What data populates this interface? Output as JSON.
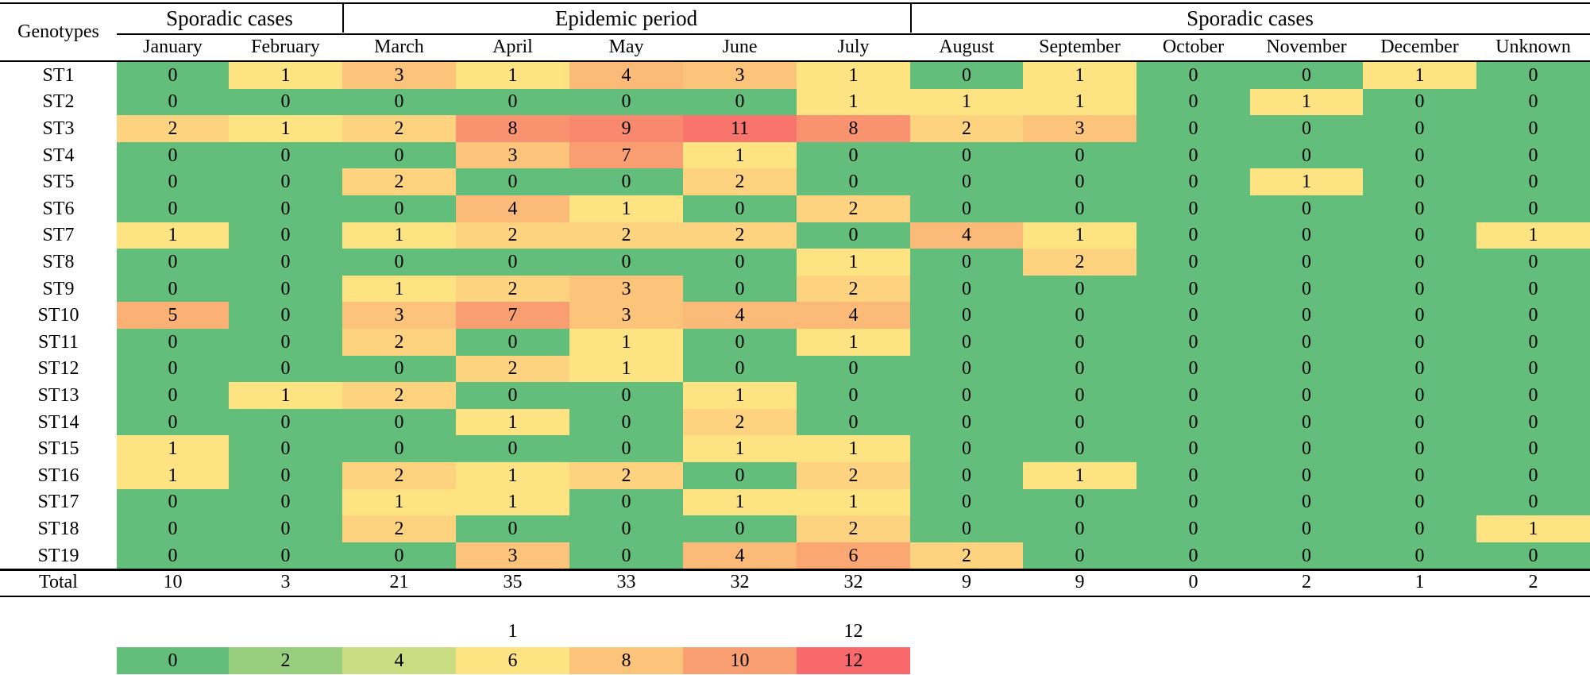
{
  "chart_data": {
    "type": "heatmap",
    "title": "",
    "row_header": "Genotypes",
    "groups": [
      {
        "label": "Sporadic cases",
        "months": [
          "January",
          "February"
        ]
      },
      {
        "label": "Epidemic period",
        "months": [
          "March",
          "April",
          "May",
          "June",
          "July"
        ]
      },
      {
        "label": "Sporadic cases",
        "months": [
          "August",
          "September",
          "October",
          "November",
          "December",
          "Unknown"
        ]
      }
    ],
    "columns": [
      "January",
      "February",
      "March",
      "April",
      "May",
      "June",
      "July",
      "August",
      "September",
      "October",
      "November",
      "December",
      "Unknown"
    ],
    "rows": [
      "ST1",
      "ST2",
      "ST3",
      "ST4",
      "ST5",
      "ST6",
      "ST7",
      "ST8",
      "ST9",
      "ST10",
      "ST11",
      "ST12",
      "ST13",
      "ST14",
      "ST15",
      "ST16",
      "ST17",
      "ST18",
      "ST19"
    ],
    "values": [
      [
        0,
        1,
        3,
        1,
        4,
        3,
        1,
        0,
        1,
        0,
        0,
        1,
        0
      ],
      [
        0,
        0,
        0,
        0,
        0,
        0,
        1,
        1,
        1,
        0,
        1,
        0,
        0
      ],
      [
        2,
        1,
        2,
        8,
        9,
        11,
        8,
        2,
        3,
        0,
        0,
        0,
        0
      ],
      [
        0,
        0,
        0,
        3,
        7,
        1,
        0,
        0,
        0,
        0,
        0,
        0,
        0
      ],
      [
        0,
        0,
        2,
        0,
        0,
        2,
        0,
        0,
        0,
        0,
        1,
        0,
        0
      ],
      [
        0,
        0,
        0,
        4,
        1,
        0,
        2,
        0,
        0,
        0,
        0,
        0,
        0
      ],
      [
        1,
        0,
        1,
        2,
        2,
        2,
        0,
        4,
        1,
        0,
        0,
        0,
        1
      ],
      [
        0,
        0,
        0,
        0,
        0,
        0,
        1,
        0,
        2,
        0,
        0,
        0,
        0
      ],
      [
        0,
        0,
        1,
        2,
        3,
        0,
        2,
        0,
        0,
        0,
        0,
        0,
        0
      ],
      [
        5,
        0,
        3,
        7,
        3,
        4,
        4,
        0,
        0,
        0,
        0,
        0,
        0
      ],
      [
        0,
        0,
        2,
        0,
        1,
        0,
        1,
        0,
        0,
        0,
        0,
        0,
        0
      ],
      [
        0,
        0,
        0,
        2,
        1,
        0,
        0,
        0,
        0,
        0,
        0,
        0,
        0
      ],
      [
        0,
        1,
        2,
        0,
        0,
        1,
        0,
        0,
        0,
        0,
        0,
        0,
        0
      ],
      [
        0,
        0,
        0,
        1,
        0,
        2,
        0,
        0,
        0,
        0,
        0,
        0,
        0
      ],
      [
        1,
        0,
        0,
        0,
        0,
        1,
        1,
        0,
        0,
        0,
        0,
        0,
        0
      ],
      [
        1,
        0,
        2,
        1,
        2,
        0,
        2,
        0,
        1,
        0,
        0,
        0,
        0
      ],
      [
        0,
        0,
        1,
        1,
        0,
        1,
        1,
        0,
        0,
        0,
        0,
        0,
        0
      ],
      [
        0,
        0,
        2,
        0,
        0,
        0,
        2,
        0,
        0,
        0,
        0,
        0,
        1
      ],
      [
        0,
        0,
        0,
        3,
        0,
        4,
        6,
        2,
        0,
        0,
        0,
        0,
        0
      ]
    ],
    "totals_label": "Total",
    "totals": [
      10,
      3,
      21,
      35,
      33,
      32,
      32,
      9,
      9,
      0,
      2,
      1,
      2
    ],
    "legend": {
      "values": [
        0,
        2,
        4,
        6,
        8,
        10,
        12
      ],
      "colors": [
        "#63be7b",
        "#98cf7e",
        "#cbdd82",
        "#fee382",
        "#fcc37b",
        "#f99e70",
        "#f8696b"
      ],
      "top_labels": [
        {
          "value": "1",
          "above": 6
        },
        {
          "value": "12",
          "above": 12
        }
      ]
    },
    "value_scale": {
      "stops": [
        {
          "value": 0,
          "color": "#63be7b"
        },
        {
          "value": 1,
          "color": "#fee382"
        },
        {
          "value": 3,
          "color": "#fcc37b"
        },
        {
          "value": 7,
          "color": "#f99e70"
        },
        {
          "value": 12,
          "color": "#f8696b"
        }
      ]
    }
  }
}
